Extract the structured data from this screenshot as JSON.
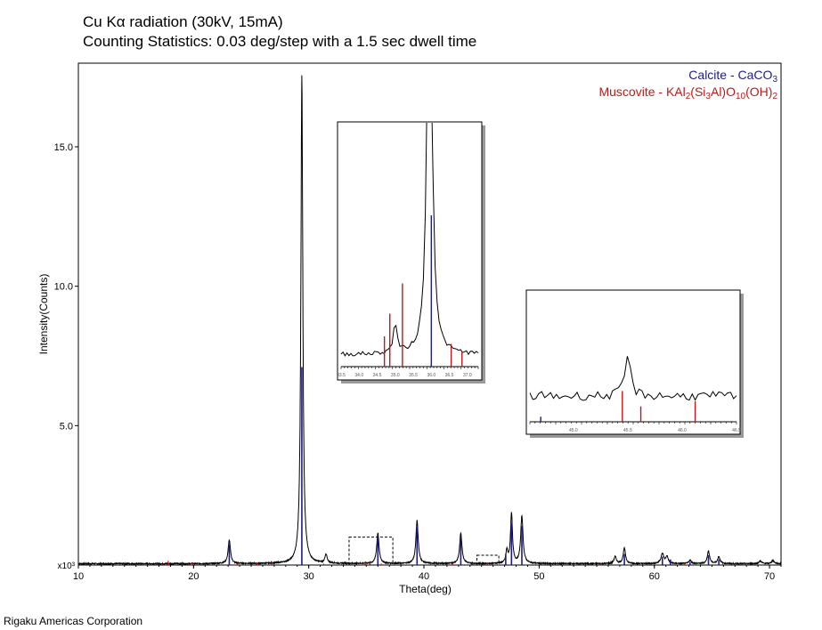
{
  "header": {
    "line1": "Cu Kα radiation (30kV, 15mA)",
    "line2": "Counting Statistics: 0.03 deg/step with a 1.5 sec dwell time"
  },
  "footer": {
    "company": "Rigaku Americas Corporation"
  },
  "legend": {
    "calcite": {
      "name": "Calcite - CaCO",
      "sub3": "3",
      "color": "#1c1c8c"
    },
    "muscovite": {
      "pre": "Muscovite - KAl",
      "s1": "2",
      "mid1": "(Si",
      "s2": "3",
      "mid2": "Al)O",
      "s3": "10",
      "mid3": "(OH)",
      "s4": "2",
      "color": "#c01818"
    }
  },
  "chart_data": {
    "type": "line",
    "xlabel": "Theta(deg)",
    "ylabel": "Intensity(Counts)",
    "y_multiplier_label": "x10³",
    "xlim": [
      10,
      71
    ],
    "ylim": [
      0,
      18
    ],
    "x_ticks": [
      "10",
      "20",
      "30",
      "40",
      "50",
      "60",
      "70"
    ],
    "y_ticks": [
      "5.0",
      "10.0",
      "15.0"
    ],
    "baseline": 0.05,
    "peaks": [
      {
        "x": 23.1,
        "y": 0.85,
        "w": 0.12
      },
      {
        "x": 29.4,
        "y": 17.5,
        "w": 0.1
      },
      {
        "x": 31.5,
        "y": 0.3,
        "w": 0.12
      },
      {
        "x": 36.0,
        "y": 1.1,
        "w": 0.12
      },
      {
        "x": 39.4,
        "y": 1.55,
        "w": 0.12
      },
      {
        "x": 43.2,
        "y": 1.1,
        "w": 0.12
      },
      {
        "x": 47.2,
        "y": 0.45,
        "w": 0.1
      },
      {
        "x": 47.6,
        "y": 1.8,
        "w": 0.1
      },
      {
        "x": 48.5,
        "y": 1.7,
        "w": 0.12
      },
      {
        "x": 56.6,
        "y": 0.25,
        "w": 0.12
      },
      {
        "x": 57.4,
        "y": 0.55,
        "w": 0.12
      },
      {
        "x": 60.7,
        "y": 0.35,
        "w": 0.15
      },
      {
        "x": 61.1,
        "y": 0.25,
        "w": 0.12
      },
      {
        "x": 63.1,
        "y": 0.12,
        "w": 0.12
      },
      {
        "x": 64.7,
        "y": 0.45,
        "w": 0.12
      },
      {
        "x": 65.6,
        "y": 0.25,
        "w": 0.12
      },
      {
        "x": 69.2,
        "y": 0.1,
        "w": 0.12
      },
      {
        "x": 70.3,
        "y": 0.12,
        "w": 0.12
      }
    ],
    "calcite_sticks": [
      {
        "x": 23.1,
        "y": 0.8
      },
      {
        "x": 29.4,
        "y": 7.1
      },
      {
        "x": 36.0,
        "y": 1.0
      },
      {
        "x": 39.4,
        "y": 1.4
      },
      {
        "x": 43.2,
        "y": 1.0
      },
      {
        "x": 47.1,
        "y": 0.4
      },
      {
        "x": 47.6,
        "y": 1.5
      },
      {
        "x": 48.5,
        "y": 1.4
      },
      {
        "x": 57.4,
        "y": 0.4
      },
      {
        "x": 60.7,
        "y": 0.3
      },
      {
        "x": 61.4,
        "y": 0.2
      },
      {
        "x": 63.1,
        "y": 0.1
      },
      {
        "x": 64.7,
        "y": 0.35
      },
      {
        "x": 65.6,
        "y": 0.2
      }
    ],
    "muscovite_sticks": [
      {
        "x": 17.8,
        "y": 0.15
      },
      {
        "x": 19.9,
        "y": 0.1
      },
      {
        "x": 23.8,
        "y": 0.05
      },
      {
        "x": 25.5,
        "y": 0.08
      },
      {
        "x": 26.8,
        "y": 0.1
      },
      {
        "x": 31.3,
        "y": 0.05
      },
      {
        "x": 34.9,
        "y": 0.12
      },
      {
        "x": 35.3,
        "y": 0.08
      },
      {
        "x": 36.3,
        "y": 0.05
      },
      {
        "x": 42.5,
        "y": 0.05
      },
      {
        "x": 45.5,
        "y": 0.1
      },
      {
        "x": 55.3,
        "y": 0.05
      },
      {
        "x": 61.8,
        "y": 0.05
      },
      {
        "x": 62.6,
        "y": 0.05
      }
    ],
    "zoom_regions": [
      {
        "xlim": [
          33.5,
          37.3
        ],
        "ylim": [
          0,
          1.0
        ]
      },
      {
        "xlim": [
          44.6,
          46.5
        ],
        "ylim": [
          0,
          0.35
        ]
      }
    ],
    "insets": [
      {
        "xlim": [
          33.5,
          37.3
        ],
        "x_ticks": [
          "33.5",
          "34.0",
          "34.5",
          "35.0",
          "35.5",
          "36.0",
          "36.5",
          "37.0"
        ],
        "peaks": [
          {
            "x": 35.0,
            "y": 0.2,
            "w": 0.06
          },
          {
            "x": 35.95,
            "y": 3.5,
            "w": 0.07
          }
        ],
        "base": 0.08,
        "ymax": 1.6,
        "calcite_sticks": [
          {
            "x": 36.0,
            "y": 1.0
          }
        ],
        "muscovite_sticks": [
          {
            "x": 34.7,
            "y": 0.2
          },
          {
            "x": 34.85,
            "y": 0.35
          },
          {
            "x": 35.2,
            "y": 0.55
          },
          {
            "x": 36.55,
            "y": 0.15
          },
          {
            "x": 36.85,
            "y": 0.1
          }
        ]
      },
      {
        "xlim": [
          44.6,
          46.5
        ],
        "x_ticks": [
          "45.0",
          "45.5",
          "46.0",
          "46.5"
        ],
        "peaks": [
          {
            "x": 45.5,
            "y": 0.08,
            "w": 0.03
          }
        ],
        "base": 0.05,
        "ymax": 0.25,
        "calcite_sticks": [
          {
            "x": 44.7,
            "y": 0.01
          }
        ],
        "muscovite_sticks": [
          {
            "x": 45.45,
            "y": 0.06
          },
          {
            "x": 45.62,
            "y": 0.03
          },
          {
            "x": 46.12,
            "y": 0.04
          }
        ]
      }
    ]
  }
}
